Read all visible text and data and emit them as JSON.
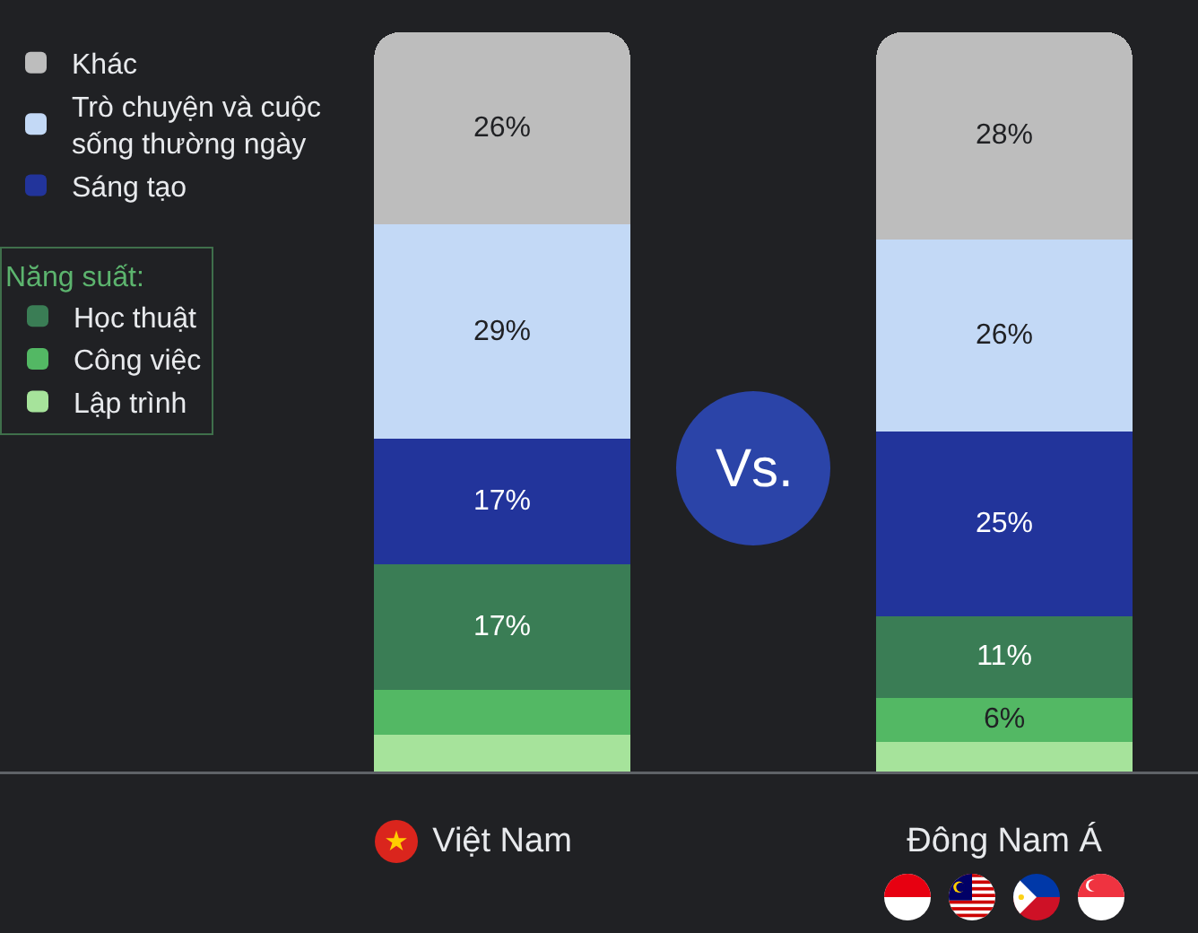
{
  "chart_data": {
    "type": "bar",
    "stacked": true,
    "categories": [
      "Việt Nam",
      "Đông Nam Á"
    ],
    "series": [
      {
        "name": "Lập trình",
        "color": "#a6e39b",
        "values": [
          5,
          4
        ],
        "value_labels": [
          null,
          null
        ]
      },
      {
        "name": "Công việc",
        "color": "#53b864",
        "values": [
          6,
          6
        ],
        "value_labels": [
          null,
          "6%"
        ]
      },
      {
        "name": "Học thuật",
        "color": "#3a7d55",
        "values": [
          17,
          11
        ],
        "value_labels": [
          "17%",
          "11%"
        ]
      },
      {
        "name": "Sáng tạo",
        "color": "#22349b",
        "values": [
          17,
          25
        ],
        "value_labels": [
          "17%",
          "25%"
        ]
      },
      {
        "name": "Trò chuyện và cuộc sống thường ngày",
        "color": "#c3d9f6",
        "values": [
          29,
          26
        ],
        "value_labels": [
          "29%",
          "26%"
        ]
      },
      {
        "name": "Khác",
        "color": "#bdbdbd",
        "values": [
          26,
          28
        ],
        "value_labels": [
          "26%",
          "28%"
        ]
      }
    ],
    "ylim": [
      0,
      100
    ],
    "tick_labels": "x",
    "legend": "top left",
    "legend_title": "Năng suất:",
    "annotations": [
      "Vs."
    ]
  }
}
